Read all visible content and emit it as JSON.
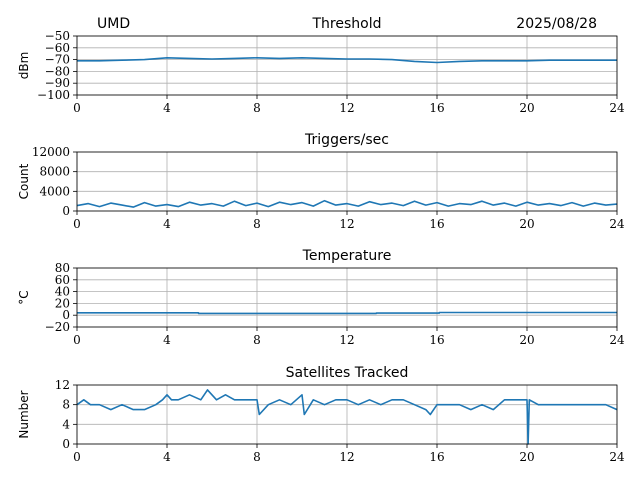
{
  "header": {
    "station": "UMD",
    "date": "2025/08/28"
  },
  "colors": {
    "series": "#1f77b4",
    "grid": "#b0b0b0"
  },
  "chart_data": [
    {
      "id": "threshold",
      "type": "line",
      "title": "Threshold",
      "ylabel": "dBm",
      "xlim": [
        0,
        24
      ],
      "ylim": [
        -100,
        -50
      ],
      "xticks": [
        0,
        4,
        8,
        12,
        16,
        20,
        24
      ],
      "yticks": [
        -100,
        -90,
        -80,
        -70,
        -60,
        -50
      ],
      "ytick_labels": [
        "−100",
        "−90",
        "−80",
        "−70",
        "−60",
        "−50"
      ],
      "grid": true,
      "series": [
        {
          "x": [
            0,
            1,
            2,
            3,
            4,
            5,
            6,
            7,
            8,
            9,
            10,
            11,
            12,
            13,
            14,
            15,
            16,
            17,
            18,
            19,
            20,
            21,
            22,
            23,
            24
          ],
          "y": [
            -71,
            -71,
            -70.5,
            -70,
            -68.5,
            -69,
            -69.5,
            -69,
            -68.5,
            -69,
            -68.5,
            -69,
            -69.5,
            -69.5,
            -70,
            -71.5,
            -72.5,
            -71.5,
            -71,
            -71,
            -71,
            -70.5,
            -70.5,
            -70.5,
            -70.5
          ]
        }
      ]
    },
    {
      "id": "triggers",
      "type": "line",
      "title": "Triggers/sec",
      "ylabel": "Count",
      "xlim": [
        0,
        24
      ],
      "ylim": [
        0,
        12000
      ],
      "xticks": [
        0,
        4,
        8,
        12,
        16,
        20,
        24
      ],
      "yticks": [
        0,
        4000,
        8000,
        12000
      ],
      "grid": true,
      "series": [
        {
          "x": [
            0,
            0.5,
            1,
            1.5,
            2,
            2.5,
            3,
            3.5,
            4,
            4.5,
            5,
            5.5,
            6,
            6.5,
            7,
            7.5,
            8,
            8.5,
            9,
            9.5,
            10,
            10.5,
            11,
            11.5,
            12,
            12.5,
            13,
            13.5,
            14,
            14.5,
            15,
            15.5,
            16,
            16.5,
            17,
            17.5,
            18,
            18.5,
            19,
            19.5,
            20,
            20.5,
            21,
            21.5,
            22,
            22.5,
            23,
            23.5,
            24
          ],
          "y": [
            1100,
            1500,
            900,
            1600,
            1200,
            800,
            1700,
            1000,
            1300,
            900,
            1800,
            1200,
            1500,
            1000,
            2000,
            1100,
            1600,
            900,
            1800,
            1300,
            1700,
            1000,
            2100,
            1200,
            1500,
            1000,
            1900,
            1300,
            1600,
            1100,
            2000,
            1200,
            1700,
            1000,
            1500,
            1300,
            2000,
            1200,
            1600,
            1000,
            1800,
            1200,
            1500,
            1100,
            1700,
            1000,
            1600,
            1200,
            1400
          ]
        }
      ]
    },
    {
      "id": "temperature",
      "type": "line",
      "title": "Temperature",
      "ylabel": "°C",
      "xlim": [
        0,
        24
      ],
      "ylim": [
        -20,
        80
      ],
      "xticks": [
        0,
        4,
        8,
        12,
        16,
        20,
        24
      ],
      "yticks": [
        -20,
        0,
        20,
        40,
        60,
        80
      ],
      "ytick_labels": [
        "−20",
        "0",
        "20",
        "40",
        "60",
        "80"
      ],
      "grid": true,
      "series": [
        {
          "x": [
            0,
            5.4,
            5.4,
            13.3,
            13.3,
            16.1,
            16.1,
            24
          ],
          "y": [
            4,
            4,
            3,
            3,
            3.5,
            3.5,
            4.5,
            4.5
          ]
        }
      ]
    },
    {
      "id": "satellites",
      "type": "line",
      "title": "Satellites Tracked",
      "ylabel": "Number",
      "xlim": [
        0,
        24
      ],
      "ylim": [
        0,
        12
      ],
      "xticks": [
        0,
        4,
        8,
        12,
        16,
        20,
        24
      ],
      "yticks": [
        0,
        4,
        8,
        12
      ],
      "grid": true,
      "series": [
        {
          "x": [
            0,
            0.3,
            0.6,
            1.0,
            1.5,
            2.0,
            2.5,
            3.0,
            3.5,
            3.8,
            4.0,
            4.2,
            4.5,
            5.0,
            5.5,
            5.8,
            6.2,
            6.6,
            7.0,
            7.5,
            8.0,
            8.1,
            8.5,
            9.0,
            9.5,
            10.0,
            10.1,
            10.5,
            11.0,
            11.5,
            12.0,
            12.5,
            13.0,
            13.5,
            14.0,
            14.5,
            15.0,
            15.5,
            15.7,
            16.0,
            16.5,
            17.0,
            17.5,
            18.0,
            18.5,
            19.0,
            19.5,
            20.0,
            20.05,
            20.1,
            20.5,
            21.0,
            21.5,
            22.0,
            22.5,
            23.0,
            23.5,
            24.0
          ],
          "y": [
            8,
            9,
            8,
            8,
            7,
            8,
            7,
            7,
            8,
            9,
            10,
            9,
            9,
            10,
            9,
            11,
            9,
            10,
            9,
            9,
            9,
            6,
            8,
            9,
            8,
            10,
            6,
            9,
            8,
            9,
            9,
            8,
            9,
            8,
            9,
            9,
            8,
            7,
            6,
            8,
            8,
            8,
            7,
            8,
            7,
            9,
            9,
            9,
            0,
            9,
            8,
            8,
            8,
            8,
            8,
            8,
            8,
            7
          ]
        }
      ]
    }
  ]
}
